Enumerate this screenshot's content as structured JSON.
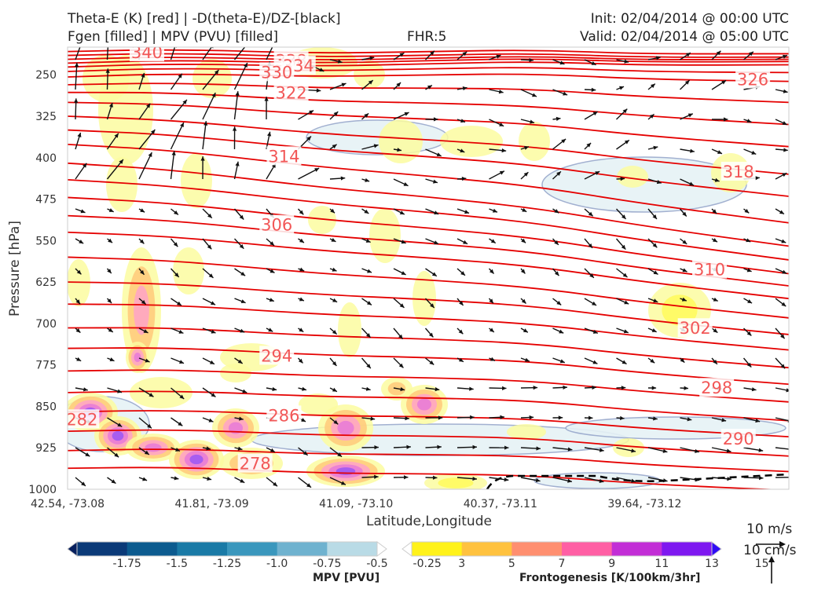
{
  "header": {
    "title_line1": "Theta-E (K) [red] | -D(theta-E)/DZ-[black]",
    "title_line2": "Fgen [filled] | MPV (PVU) [filled]",
    "fhr": "FHR:5",
    "init": "Init: 02/04/2014 @ 00:00 UTC",
    "valid": "Valid: 02/04/2014 @ 05:00 UTC"
  },
  "chart_data": {
    "type": "cross-section",
    "xlabel": "Latitude,Longitude",
    "ylabel": "Pressure [hPa]",
    "x_ticks": [
      "42.54, -73.08",
      "41.81, -73.09",
      "41.09, -73.10",
      "40.37, -73.11",
      "39.64, -73.12"
    ],
    "y_ticks": [
      250,
      325,
      400,
      475,
      550,
      625,
      700,
      775,
      850,
      925,
      1000
    ],
    "ylim": [
      1000,
      200
    ],
    "y_inverted": true,
    "theta_e_contour_labels": [
      {
        "value": "340",
        "x_frac": 0.11,
        "p": 210
      },
      {
        "value": "338",
        "x_frac": 0.31,
        "p": 225
      },
      {
        "value": "334",
        "x_frac": 0.32,
        "p": 234
      },
      {
        "value": "330",
        "x_frac": 0.29,
        "p": 246
      },
      {
        "value": "326",
        "x_frac": 0.95,
        "p": 259
      },
      {
        "value": "322",
        "x_frac": 0.31,
        "p": 283
      },
      {
        "value": "318",
        "x_frac": 0.93,
        "p": 426
      },
      {
        "value": "314",
        "x_frac": 0.3,
        "p": 398
      },
      {
        "value": "310",
        "x_frac": 0.89,
        "p": 603
      },
      {
        "value": "306",
        "x_frac": 0.29,
        "p": 522
      },
      {
        "value": "302",
        "x_frac": 0.87,
        "p": 709
      },
      {
        "value": "298",
        "x_frac": 0.9,
        "p": 817
      },
      {
        "value": "294",
        "x_frac": 0.29,
        "p": 759
      },
      {
        "value": "290",
        "x_frac": 0.93,
        "p": 909
      },
      {
        "value": "286",
        "x_frac": 0.3,
        "p": 867
      },
      {
        "value": "282",
        "x_frac": 0.02,
        "p": 874
      },
      {
        "value": "278",
        "x_frac": 0.26,
        "p": 954
      }
    ],
    "mpv_colorbar": {
      "label": "MPV [PVU]",
      "ticks": [
        "-1.75",
        "-1.5",
        "-1.25",
        "-1.0",
        "-0.75",
        "-0.5",
        "-0.25"
      ],
      "colors": [
        "#08205e",
        "#0b3a78",
        "#0c5b8f",
        "#1a7aa6",
        "#3a97bd",
        "#6fb2cf",
        "#b9dbe6",
        "#ffffff"
      ]
    },
    "fgen_colorbar": {
      "label": "Frontogenesis [K/100km/3hr]",
      "ticks": [
        "3",
        "5",
        "7",
        "9",
        "11",
        "13",
        "15"
      ],
      "colors": [
        "#ffffff",
        "#fff21a",
        "#ffc23f",
        "#ff8f70",
        "#ff5fa4",
        "#c22ed6",
        "#7e18f0",
        "#2f0cf5"
      ]
    },
    "wind_reference": {
      "horizontal": "10 m/s",
      "vertical": "10 cm/s"
    },
    "colors": {
      "theta_e": "#e50000",
      "label": "#f25757",
      "stability": "#000000",
      "mpv_outline": "#98a8cc"
    }
  }
}
